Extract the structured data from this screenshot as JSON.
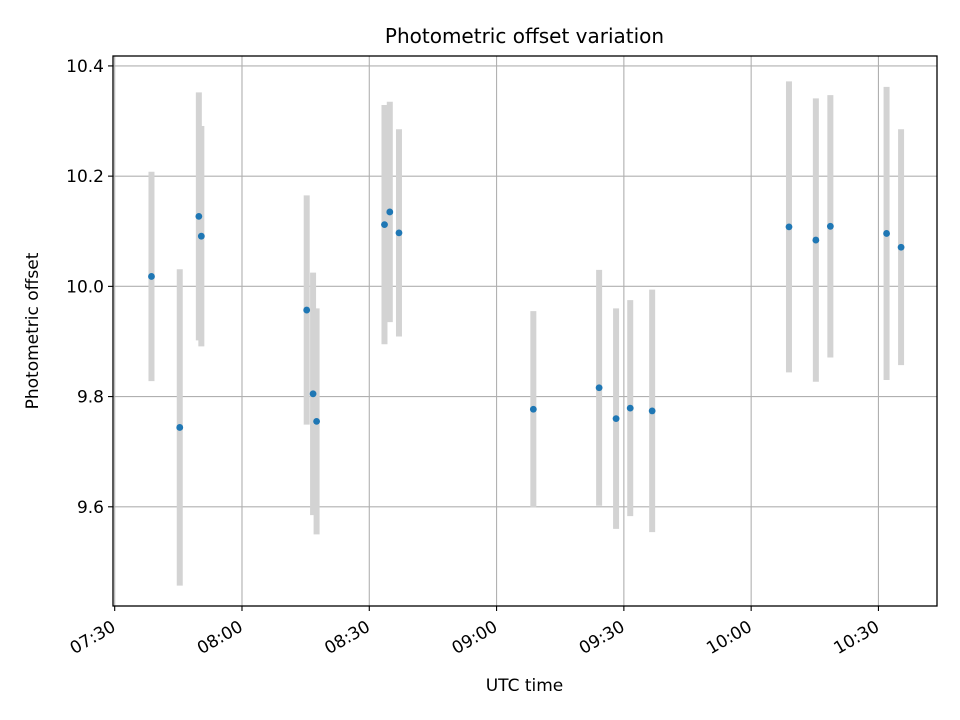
{
  "chart_data": {
    "type": "scatter",
    "title": "Photometric offset variation",
    "xlabel": "UTC time",
    "ylabel": "Photometric offset",
    "x_ticks": [
      "07:30",
      "08:00",
      "08:30",
      "09:00",
      "09:30",
      "10:00",
      "10:30"
    ],
    "x_tick_minutes": [
      450,
      480,
      510,
      540,
      570,
      600,
      630
    ],
    "xlim_minutes": [
      449.6,
      643.8
    ],
    "y_ticks": [
      9.6,
      9.8,
      10.0,
      10.2,
      10.4
    ],
    "ylim": [
      9.42,
      10.418
    ],
    "grid": true,
    "colors": {
      "points": "#1f77b4",
      "errorbars": "#d3d3d3",
      "grid": "#b0b0b0"
    },
    "points": [
      {
        "x": "07:38:40",
        "y": 10.018,
        "err": 0.19
      },
      {
        "x": "07:45:20",
        "y": 9.744,
        "err": 0.287
      },
      {
        "x": "07:49:50",
        "y": 10.127,
        "err": 0.225
      },
      {
        "x": "07:50:25",
        "y": 10.091,
        "err": 0.2
      },
      {
        "x": "08:15:15",
        "y": 9.957,
        "err": 0.208
      },
      {
        "x": "08:16:45",
        "y": 9.805,
        "err": 0.22
      },
      {
        "x": "08:17:35",
        "y": 9.755,
        "err": 0.205
      },
      {
        "x": "08:33:35",
        "y": 10.112,
        "err": 0.217
      },
      {
        "x": "08:34:50",
        "y": 10.135,
        "err": 0.2
      },
      {
        "x": "08:37:00",
        "y": 10.097,
        "err": 0.188
      },
      {
        "x": "09:08:40",
        "y": 9.777,
        "err": 0.178
      },
      {
        "x": "09:24:10",
        "y": 9.816,
        "err": 0.214
      },
      {
        "x": "09:28:10",
        "y": 9.76,
        "err": 0.2
      },
      {
        "x": "09:31:30",
        "y": 9.779,
        "err": 0.196
      },
      {
        "x": "09:36:40",
        "y": 9.774,
        "err": 0.22
      },
      {
        "x": "10:08:55",
        "y": 10.108,
        "err": 0.264
      },
      {
        "x": "10:15:15",
        "y": 10.084,
        "err": 0.257
      },
      {
        "x": "10:18:40",
        "y": 10.109,
        "err": 0.238
      },
      {
        "x": "10:31:55",
        "y": 10.096,
        "err": 0.266
      },
      {
        "x": "10:35:20",
        "y": 10.071,
        "err": 0.214
      }
    ]
  }
}
